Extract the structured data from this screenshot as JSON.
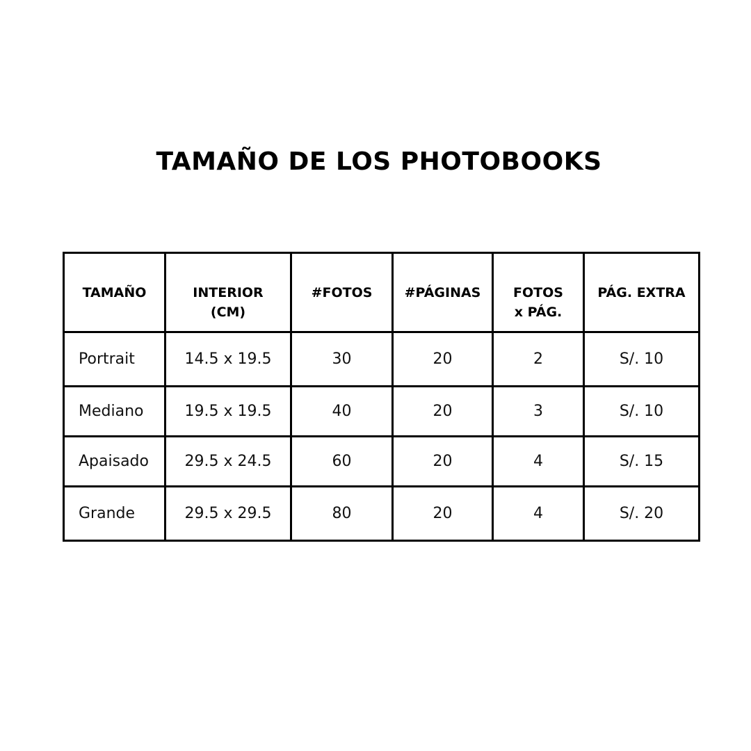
{
  "title": "TAMAÑO DE LOS PHOTOBOOKS",
  "table": {
    "headers": [
      [
        "TAMAÑO"
      ],
      [
        "INTERIOR",
        "(CM)"
      ],
      [
        "#FOTOS"
      ],
      [
        "#PÁGINAS"
      ],
      [
        "FOTOS",
        "x PÁG."
      ],
      [
        "PÁG. EXTRA"
      ]
    ],
    "rows": [
      [
        "Portrait",
        "14.5 x 19.5",
        "30",
        "20",
        "2",
        "S/. 10"
      ],
      [
        "Mediano",
        "19.5 x 19.5",
        "40",
        "20",
        "3",
        "S/. 10"
      ],
      [
        "Apaisado",
        "29.5 x 24.5",
        "60",
        "20",
        "4",
        "S/. 15"
      ],
      [
        "Grande",
        "29.5 x 29.5",
        "80",
        "20",
        "4",
        "S/. 20"
      ]
    ]
  }
}
